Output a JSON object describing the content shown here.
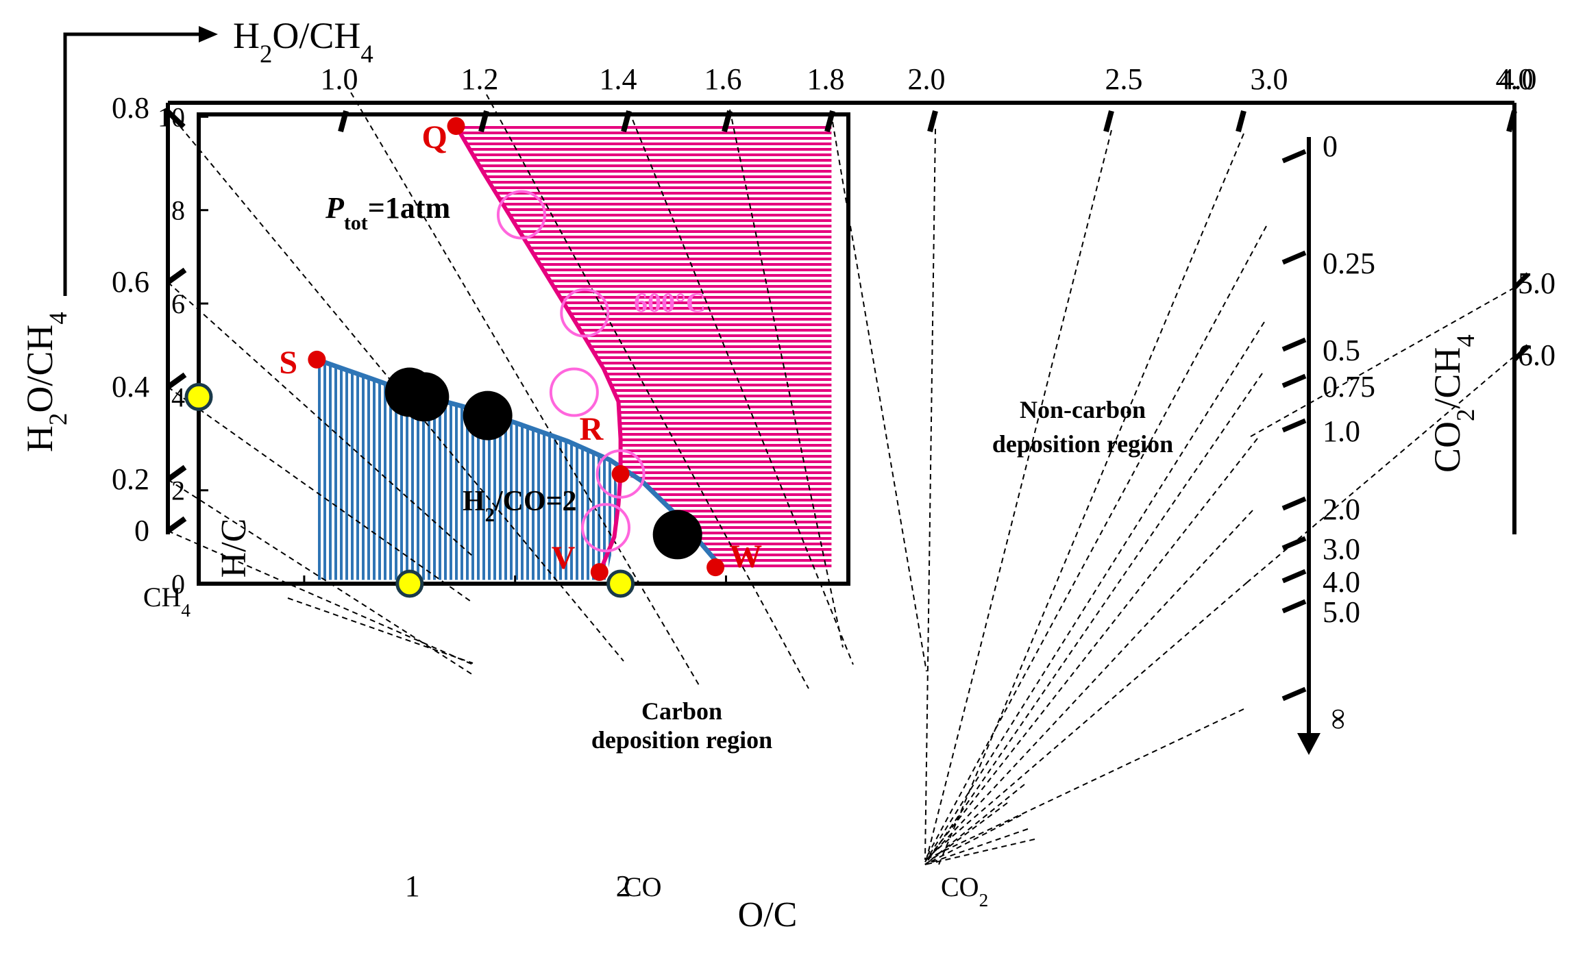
{
  "chart_data": {
    "type": "ternary-projection",
    "title": "",
    "xlabel": "O/C",
    "ylabel": "H/C",
    "xlim": [
      0,
      3.08
    ],
    "ylim": [
      0,
      10.05
    ],
    "x_ticks": [
      {
        "value": 1,
        "label": "1"
      },
      {
        "value": 2,
        "label": "2"
      }
    ],
    "y_ticks": [
      {
        "value": 0,
        "label": "0"
      },
      {
        "value": 2,
        "label": "2"
      },
      {
        "value": 4,
        "label": "4"
      },
      {
        "value": 6,
        "label": "6"
      },
      {
        "value": 8,
        "label": "8"
      },
      {
        "value": 10,
        "label": "10"
      }
    ],
    "pressure_label": {
      "symbol": "P",
      "subscript": "tot",
      "value": "=1atm"
    },
    "species_points": [
      {
        "name": "CH4",
        "label": "CH",
        "sub": "4",
        "x": 0,
        "y": 4
      },
      {
        "name": "CO",
        "label": "CO",
        "sub": "",
        "x": 1,
        "y": 0
      },
      {
        "name": "CO2",
        "label": "CO",
        "sub": "2",
        "x": 2,
        "y": 0
      }
    ],
    "regions": {
      "carbon": {
        "line1": "Carbon",
        "line2": "deposition region",
        "color": "#2f75b5"
      },
      "noncarbon": {
        "line1": "Non-carbon",
        "line2": "deposition region",
        "color": "#e6007e"
      }
    },
    "boundary_line": {
      "color": "#2e75b6",
      "points": [
        [
          0.56,
          4.8
        ],
        [
          0.8,
          4.42
        ],
        [
          1.0,
          4.1
        ],
        [
          1.25,
          3.8
        ],
        [
          1.5,
          3.45
        ],
        [
          1.75,
          3.05
        ],
        [
          1.95,
          2.65
        ],
        [
          2.1,
          2.2
        ],
        [
          2.27,
          1.45
        ],
        [
          2.45,
          0.5
        ]
      ]
    },
    "h2_co_label": {
      "text": "H",
      "sub": "2",
      "rest": "/CO=2",
      "x": 0.55,
      "y": 5.1
    },
    "temperature_curve": {
      "label": "600°C",
      "color": "#e6007e",
      "points": [
        [
          1.22,
          9.8
        ],
        [
          1.35,
          8.8
        ],
        [
          1.5,
          7.7
        ],
        [
          1.65,
          6.6
        ],
        [
          1.8,
          5.5
        ],
        [
          1.92,
          4.6
        ],
        [
          1.99,
          3.9
        ],
        [
          2.0,
          3.1
        ],
        [
          2.0,
          2.35
        ],
        [
          1.99,
          1.7
        ],
        [
          1.97,
          1.0
        ],
        [
          1.92,
          0.45
        ],
        [
          1.9,
          0.25
        ]
      ]
    },
    "labeled_points": [
      {
        "name": "Q",
        "x": 1.22,
        "y": 9.8
      },
      {
        "name": "R",
        "x": 2.0,
        "y": 2.35
      },
      {
        "name": "S",
        "x": 0.56,
        "y": 4.8
      },
      {
        "name": "V",
        "x": 1.9,
        "y": 0.25
      },
      {
        "name": "W",
        "x": 2.45,
        "y": 0.35
      }
    ],
    "black_markers": [
      {
        "x": 1.0,
        "y": 4.1
      },
      {
        "x": 1.07,
        "y": 4.0
      },
      {
        "x": 1.37,
        "y": 3.6
      },
      {
        "x": 2.27,
        "y": 1.05
      }
    ],
    "magenta_circles": [
      {
        "x": 1.53,
        "y": 7.9
      },
      {
        "x": 1.83,
        "y": 5.8
      },
      {
        "x": 1.78,
        "y": 4.1
      },
      {
        "x": 2.0,
        "y": 2.35
      },
      {
        "x": 1.93,
        "y": 1.2
      }
    ],
    "top_axis": {
      "label": "H",
      "label_sub1": "2",
      "label_mid": "O/CH",
      "label_sub2": "4",
      "ticks": [
        "1.0",
        "1.2",
        "1.4",
        "1.6",
        "1.8",
        "2.0",
        "2.5",
        "3.0",
        "4.0"
      ]
    },
    "left_axis": {
      "label": "H",
      "label_sub1": "2",
      "label_mid": "O/CH",
      "label_sub2": "4",
      "top_label": "0.8",
      "ticks": [
        "0.6",
        "0.4",
        "0.2",
        "0"
      ]
    },
    "right_axis": {
      "label": "CO",
      "label_sub1": "2",
      "label_mid": "/CH",
      "label_sub2": "4",
      "ticks": [
        "0",
        "0.25",
        "0.5",
        "0.75",
        "1.0",
        "2.0",
        "3.0",
        "4.0",
        "5.0",
        "∞"
      ]
    },
    "far_right_axis": {
      "ticks": [
        "4.0",
        "5.0",
        "6.0"
      ]
    }
  }
}
